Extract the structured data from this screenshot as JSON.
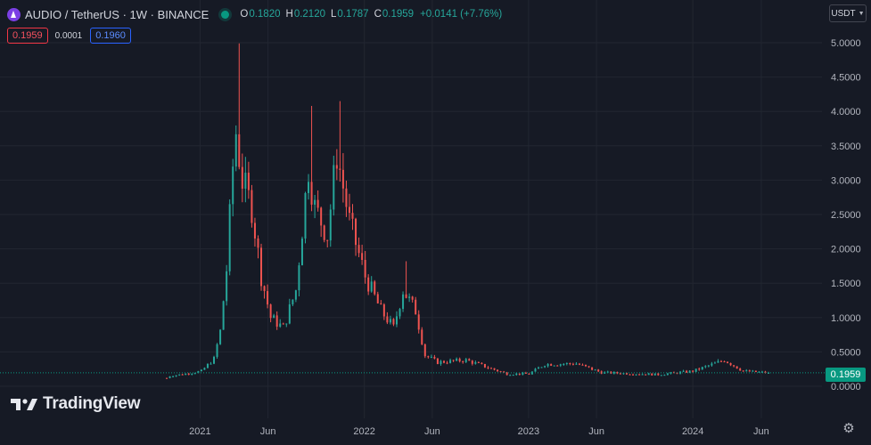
{
  "header": {
    "symbol": "AUDIO / TetherUS · 1W · BINANCE",
    "open_key": "O",
    "open": "0.1820",
    "high_key": "H",
    "high": "0.2120",
    "low_key": "L",
    "low": "0.1787",
    "close_key": "C",
    "close": "0.1959",
    "change": "+0.0141 (+7.76%)"
  },
  "trade": {
    "sell": "0.1959",
    "spread": "0.0001",
    "buy": "0.1960"
  },
  "currency": {
    "label": "USDT"
  },
  "price_label": "0.1959",
  "logo": {
    "text": "TradingView"
  },
  "icons": {
    "coin": "audio-coin-icon",
    "status": "market-open-dot",
    "settings": "gear-icon",
    "logo": "tradingview-logo-icon"
  },
  "colors": {
    "up": "#26a69a",
    "down": "#ef5350",
    "background": "#161a25",
    "grid": "#222631",
    "current_price": "#089981"
  },
  "chart_data": {
    "type": "candlestick",
    "y_axis": {
      "min": 0,
      "max": 5.0,
      "ticks": [
        "5.0000",
        "4.5000",
        "4.0000",
        "3.5000",
        "3.0000",
        "2.5000",
        "2.0000",
        "1.5000",
        "1.0000",
        "0.5000",
        "0.0000"
      ],
      "tick_values": [
        5.0,
        4.5,
        4.0,
        3.5,
        3.0,
        2.5,
        2.0,
        1.5,
        1.0,
        0.5,
        0.0
      ]
    },
    "x_axis": {
      "labels": [
        "2021",
        "Jun",
        "2022",
        "Jun",
        "2023",
        "Jun",
        "2024",
        "Jun"
      ],
      "label_dates": [
        "2021-01-01",
        "2021-06-01",
        "2022-01-01",
        "2022-06-01",
        "2023-01-01",
        "2023-06-01",
        "2024-01-01",
        "2024-06-01"
      ],
      "start": "2020-10-19",
      "end": "2024-06-17"
    },
    "grid": true,
    "current_price": 0.1959,
    "anchors": [
      {
        "date": "2020-10-19",
        "price": 0.12,
        "level": 0.12
      },
      {
        "date": "2020-10-26",
        "price": 0.18,
        "level": 0.15
      },
      {
        "date": "2020-11-30",
        "price": 0.2,
        "level": 0.18
      },
      {
        "date": "2021-01-04",
        "price": 0.22,
        "level": 0.22
      },
      {
        "date": "2021-02-01",
        "price": 0.4,
        "level": 0.4
      },
      {
        "date": "2021-02-15",
        "price": 0.8,
        "level": 0.8
      },
      {
        "date": "2021-03-01",
        "price": 1.7,
        "level": 1.7
      },
      {
        "date": "2021-03-15",
        "price": 3.2,
        "level": 3.2
      },
      {
        "date": "2021-03-22",
        "price": 3.7,
        "level": 3.7
      },
      {
        "date": "2021-04-05",
        "price": 3.0,
        "level": 3.0
      },
      {
        "date": "2021-04-26",
        "price": 2.6,
        "level": 2.6
      },
      {
        "date": "2021-05-17",
        "price": 1.6,
        "level": 1.6
      },
      {
        "date": "2021-06-07",
        "price": 1.0,
        "level": 1.0
      },
      {
        "date": "2021-07-05",
        "price": 0.85,
        "level": 0.85
      },
      {
        "date": "2021-08-02",
        "price": 1.4,
        "level": 1.4
      },
      {
        "date": "2021-08-30",
        "price": 3.2,
        "level": 3.2
      },
      {
        "date": "2021-09-13",
        "price": 2.6,
        "level": 2.6
      },
      {
        "date": "2021-10-11",
        "price": 2.2,
        "level": 2.2
      },
      {
        "date": "2021-11-01",
        "price": 3.4,
        "level": 3.4
      },
      {
        "date": "2021-11-29",
        "price": 2.4,
        "level": 2.4
      },
      {
        "date": "2022-01-03",
        "price": 1.6,
        "level": 1.6
      },
      {
        "date": "2022-02-07",
        "price": 1.1,
        "level": 1.1
      },
      {
        "date": "2022-03-07",
        "price": 0.85,
        "level": 0.85
      },
      {
        "date": "2022-03-28",
        "price": 1.4,
        "level": 1.4
      },
      {
        "date": "2022-04-25",
        "price": 1.1,
        "level": 1.1
      },
      {
        "date": "2022-05-16",
        "price": 0.45,
        "level": 0.45
      },
      {
        "date": "2022-06-13",
        "price": 0.35,
        "level": 0.35
      },
      {
        "date": "2022-08-15",
        "price": 0.38,
        "level": 0.38
      },
      {
        "date": "2022-11-14",
        "price": 0.18,
        "level": 0.18
      },
      {
        "date": "2023-01-02",
        "price": 0.18,
        "level": 0.18
      },
      {
        "date": "2023-02-06",
        "price": 0.32,
        "level": 0.32
      },
      {
        "date": "2023-04-17",
        "price": 0.33,
        "level": 0.33
      },
      {
        "date": "2023-06-12",
        "price": 0.2,
        "level": 0.2
      },
      {
        "date": "2023-10-16",
        "price": 0.17,
        "level": 0.17
      },
      {
        "date": "2024-01-01",
        "price": 0.22,
        "level": 0.22
      },
      {
        "date": "2024-03-11",
        "price": 0.38,
        "level": 0.38
      },
      {
        "date": "2024-04-22",
        "price": 0.22,
        "level": 0.22
      },
      {
        "date": "2024-06-17",
        "price": 0.1959,
        "level": 0.1959
      }
    ],
    "notable_wicks": [
      {
        "date": "2021-03-29",
        "high": 4.99
      },
      {
        "date": "2021-09-06",
        "high": 4.08
      },
      {
        "date": "2021-11-08",
        "high": 4.15
      },
      {
        "date": "2022-04-04",
        "high": 1.82
      }
    ]
  }
}
